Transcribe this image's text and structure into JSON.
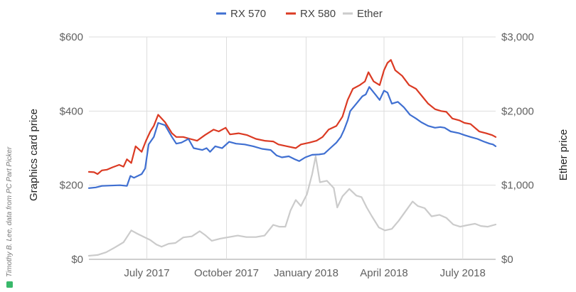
{
  "chart_data": {
    "type": "line",
    "legend_position": "top-center",
    "grid": true,
    "credit": "Timothy B. Lee, data from PC Part Picker",
    "y_left": {
      "label": "Graphics card price",
      "range": [
        0,
        600
      ],
      "ticks": [
        "$0",
        "$200",
        "$400",
        "$600"
      ],
      "tick_values": [
        0,
        200,
        400,
        600
      ]
    },
    "y_right": {
      "label": "Ether price",
      "range": [
        0,
        3000
      ],
      "ticks": [
        "$0",
        "$1,000",
        "$2,000",
        "$3,000"
      ],
      "tick_values": [
        0,
        1000,
        2000,
        3000
      ]
    },
    "x_axis": {
      "range": [
        "2017-04-25",
        "2018-08-08"
      ],
      "tick_labels": [
        "July 2017",
        "October 2017",
        "January 2018",
        "April 2018",
        "July 2018"
      ],
      "tick_dates": [
        "2017-07-01",
        "2017-10-01",
        "2018-01-01",
        "2018-04-01",
        "2018-07-01"
      ]
    },
    "series": [
      {
        "name": "RX 570",
        "color": "#3F6FD1",
        "axis": "left",
        "points": [
          [
            "2017-04-25",
            192
          ],
          [
            "2017-05-03",
            194
          ],
          [
            "2017-05-10",
            198
          ],
          [
            "2017-05-20",
            199
          ],
          [
            "2017-05-31",
            200
          ],
          [
            "2017-06-08",
            198
          ],
          [
            "2017-06-12",
            225
          ],
          [
            "2017-06-16",
            220
          ],
          [
            "2017-06-25",
            230
          ],
          [
            "2017-06-29",
            245
          ],
          [
            "2017-07-03",
            310
          ],
          [
            "2017-07-09",
            330
          ],
          [
            "2017-07-14",
            368
          ],
          [
            "2017-07-22",
            362
          ],
          [
            "2017-07-30",
            330
          ],
          [
            "2017-08-04",
            312
          ],
          [
            "2017-08-10",
            315
          ],
          [
            "2017-08-18",
            325
          ],
          [
            "2017-08-24",
            300
          ],
          [
            "2017-09-03",
            295
          ],
          [
            "2017-09-08",
            300
          ],
          [
            "2017-09-12",
            290
          ],
          [
            "2017-09-18",
            305
          ],
          [
            "2017-09-26",
            300
          ],
          [
            "2017-10-04",
            317
          ],
          [
            "2017-10-12",
            312
          ],
          [
            "2017-10-22",
            310
          ],
          [
            "2017-11-01",
            305
          ],
          [
            "2017-11-11",
            298
          ],
          [
            "2017-11-21",
            295
          ],
          [
            "2017-11-28",
            280
          ],
          [
            "2017-12-04",
            275
          ],
          [
            "2017-12-12",
            278
          ],
          [
            "2017-12-19",
            270
          ],
          [
            "2017-12-24",
            265
          ],
          [
            "2017-12-31",
            275
          ],
          [
            "2018-01-08",
            282
          ],
          [
            "2018-01-16",
            283
          ],
          [
            "2018-01-22",
            285
          ],
          [
            "2018-01-29",
            300
          ],
          [
            "2018-02-05",
            315
          ],
          [
            "2018-02-10",
            330
          ],
          [
            "2018-02-14",
            350
          ],
          [
            "2018-02-18",
            375
          ],
          [
            "2018-02-21",
            400
          ],
          [
            "2018-02-28",
            420
          ],
          [
            "2018-03-07",
            440
          ],
          [
            "2018-03-11",
            445
          ],
          [
            "2018-03-15",
            465
          ],
          [
            "2018-03-22",
            445
          ],
          [
            "2018-03-27",
            430
          ],
          [
            "2018-04-01",
            455
          ],
          [
            "2018-04-05",
            450
          ],
          [
            "2018-04-10",
            420
          ],
          [
            "2018-04-17",
            425
          ],
          [
            "2018-04-24",
            410
          ],
          [
            "2018-05-01",
            390
          ],
          [
            "2018-05-08",
            380
          ],
          [
            "2018-05-14",
            370
          ],
          [
            "2018-05-22",
            360
          ],
          [
            "2018-05-30",
            355
          ],
          [
            "2018-06-05",
            357
          ],
          [
            "2018-06-10",
            355
          ],
          [
            "2018-06-17",
            345
          ],
          [
            "2018-06-27",
            340
          ],
          [
            "2018-07-03",
            335
          ],
          [
            "2018-07-10",
            330
          ],
          [
            "2018-07-18",
            325
          ],
          [
            "2018-07-25",
            318
          ],
          [
            "2018-08-01",
            312
          ],
          [
            "2018-08-05",
            310
          ],
          [
            "2018-08-08",
            305
          ]
        ]
      },
      {
        "name": "RX 580",
        "color": "#DB3A23",
        "axis": "left",
        "points": [
          [
            "2017-04-25",
            236
          ],
          [
            "2017-05-01",
            235
          ],
          [
            "2017-05-05",
            230
          ],
          [
            "2017-05-10",
            240
          ],
          [
            "2017-05-16",
            242
          ],
          [
            "2017-05-22",
            248
          ],
          [
            "2017-05-30",
            255
          ],
          [
            "2017-06-04",
            250
          ],
          [
            "2017-06-08",
            270
          ],
          [
            "2017-06-13",
            260
          ],
          [
            "2017-06-18",
            305
          ],
          [
            "2017-06-25",
            290
          ],
          [
            "2017-06-30",
            320
          ],
          [
            "2017-07-05",
            345
          ],
          [
            "2017-07-09",
            360
          ],
          [
            "2017-07-14",
            390
          ],
          [
            "2017-07-22",
            370
          ],
          [
            "2017-07-30",
            340
          ],
          [
            "2017-08-04",
            330
          ],
          [
            "2017-08-12",
            330
          ],
          [
            "2017-08-20",
            325
          ],
          [
            "2017-08-28",
            320
          ],
          [
            "2017-09-06",
            335
          ],
          [
            "2017-09-16",
            350
          ],
          [
            "2017-09-22",
            345
          ],
          [
            "2017-09-30",
            355
          ],
          [
            "2017-10-05",
            337
          ],
          [
            "2017-10-15",
            340
          ],
          [
            "2017-10-25",
            335
          ],
          [
            "2017-11-04",
            325
          ],
          [
            "2017-11-14",
            320
          ],
          [
            "2017-11-24",
            318
          ],
          [
            "2017-11-30",
            310
          ],
          [
            "2017-12-10",
            305
          ],
          [
            "2017-12-20",
            300
          ],
          [
            "2017-12-26",
            310
          ],
          [
            "2018-01-05",
            315
          ],
          [
            "2018-01-13",
            320
          ],
          [
            "2018-01-20",
            330
          ],
          [
            "2018-01-27",
            350
          ],
          [
            "2018-02-05",
            360
          ],
          [
            "2018-02-12",
            385
          ],
          [
            "2018-02-18",
            430
          ],
          [
            "2018-02-24",
            460
          ],
          [
            "2018-03-04",
            470
          ],
          [
            "2018-03-10",
            480
          ],
          [
            "2018-03-14",
            505
          ],
          [
            "2018-03-20",
            480
          ],
          [
            "2018-03-27",
            470
          ],
          [
            "2018-04-01",
            510
          ],
          [
            "2018-04-05",
            530
          ],
          [
            "2018-04-09",
            538
          ],
          [
            "2018-04-14",
            510
          ],
          [
            "2018-04-22",
            495
          ],
          [
            "2018-04-30",
            470
          ],
          [
            "2018-05-08",
            460
          ],
          [
            "2018-05-15",
            440
          ],
          [
            "2018-05-22",
            420
          ],
          [
            "2018-05-30",
            405
          ],
          [
            "2018-06-06",
            400
          ],
          [
            "2018-06-12",
            398
          ],
          [
            "2018-06-19",
            380
          ],
          [
            "2018-06-27",
            375
          ],
          [
            "2018-07-03",
            368
          ],
          [
            "2018-07-10",
            365
          ],
          [
            "2018-07-20",
            345
          ],
          [
            "2018-07-28",
            340
          ],
          [
            "2018-08-04",
            335
          ],
          [
            "2018-08-08",
            330
          ]
        ]
      },
      {
        "name": "Ether",
        "color": "#CBCBCB",
        "axis": "right",
        "points": [
          [
            "2017-04-25",
            48
          ],
          [
            "2017-05-05",
            58
          ],
          [
            "2017-05-15",
            95
          ],
          [
            "2017-05-25",
            160
          ],
          [
            "2017-06-04",
            230
          ],
          [
            "2017-06-08",
            300
          ],
          [
            "2017-06-13",
            390
          ],
          [
            "2017-06-20",
            345
          ],
          [
            "2017-06-28",
            300
          ],
          [
            "2017-07-05",
            260
          ],
          [
            "2017-07-12",
            200
          ],
          [
            "2017-07-18",
            170
          ],
          [
            "2017-07-26",
            210
          ],
          [
            "2017-08-03",
            220
          ],
          [
            "2017-08-12",
            295
          ],
          [
            "2017-08-22",
            310
          ],
          [
            "2017-08-31",
            380
          ],
          [
            "2017-09-06",
            330
          ],
          [
            "2017-09-14",
            250
          ],
          [
            "2017-09-24",
            280
          ],
          [
            "2017-10-04",
            300
          ],
          [
            "2017-10-14",
            320
          ],
          [
            "2017-10-24",
            300
          ],
          [
            "2017-11-04",
            300
          ],
          [
            "2017-11-14",
            320
          ],
          [
            "2017-11-24",
            465
          ],
          [
            "2017-12-01",
            440
          ],
          [
            "2017-12-08",
            440
          ],
          [
            "2017-12-14",
            660
          ],
          [
            "2017-12-20",
            800
          ],
          [
            "2017-12-26",
            720
          ],
          [
            "2018-01-02",
            880
          ],
          [
            "2018-01-08",
            1150
          ],
          [
            "2018-01-12",
            1390
          ],
          [
            "2018-01-17",
            1040
          ],
          [
            "2018-01-25",
            1060
          ],
          [
            "2018-02-02",
            960
          ],
          [
            "2018-02-06",
            700
          ],
          [
            "2018-02-12",
            850
          ],
          [
            "2018-02-20",
            950
          ],
          [
            "2018-02-28",
            860
          ],
          [
            "2018-03-06",
            840
          ],
          [
            "2018-03-12",
            700
          ],
          [
            "2018-03-18",
            580
          ],
          [
            "2018-03-26",
            430
          ],
          [
            "2018-04-02",
            390
          ],
          [
            "2018-04-10",
            410
          ],
          [
            "2018-04-18",
            520
          ],
          [
            "2018-04-26",
            650
          ],
          [
            "2018-05-04",
            780
          ],
          [
            "2018-05-10",
            720
          ],
          [
            "2018-05-18",
            690
          ],
          [
            "2018-05-26",
            580
          ],
          [
            "2018-06-04",
            600
          ],
          [
            "2018-06-12",
            560
          ],
          [
            "2018-06-20",
            470
          ],
          [
            "2018-06-28",
            440
          ],
          [
            "2018-07-06",
            460
          ],
          [
            "2018-07-15",
            480
          ],
          [
            "2018-07-22",
            450
          ],
          [
            "2018-07-30",
            440
          ],
          [
            "2018-08-08",
            470
          ]
        ]
      }
    ]
  }
}
